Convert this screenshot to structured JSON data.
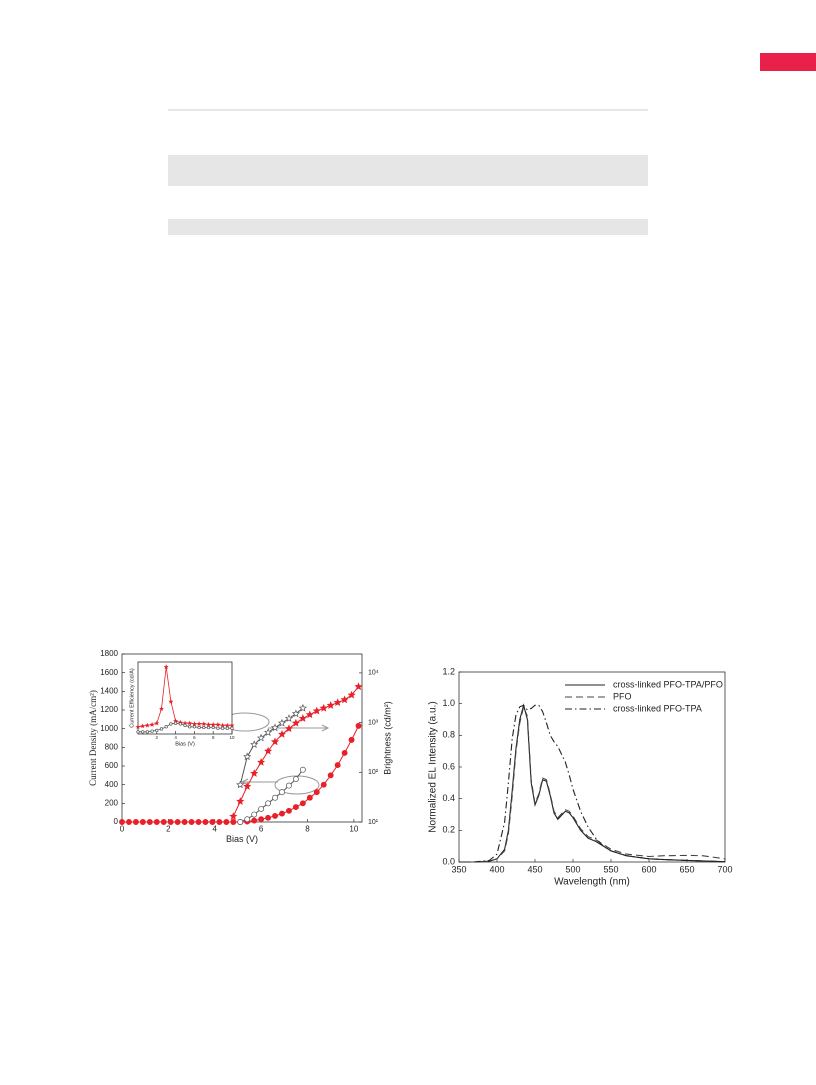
{
  "chart_data": [
    {
      "type": "line",
      "ylabel": "Current Density (mA/cm²)",
      "xlabel": "Bias (V)",
      "y2label": "Brightness (cd/m²)",
      "x": [
        0,
        0.3,
        0.6,
        0.9,
        1.2,
        1.5,
        1.8,
        2.1,
        2.4,
        2.7,
        3.0,
        3.3,
        3.6,
        3.9,
        4.2,
        4.5,
        4.8,
        5.1,
        5.4,
        5.7,
        6.0,
        6.3,
        6.6,
        6.9,
        7.2,
        7.5,
        7.8,
        8.1,
        8.4,
        8.7,
        9.0,
        9.3,
        9.6,
        9.9,
        10.2
      ],
      "xlim": [
        0,
        10.35
      ],
      "xticks": [
        0,
        2,
        4,
        6,
        8,
        10
      ],
      "ylim": [
        0,
        1800
      ],
      "yticks": [
        0,
        200,
        400,
        600,
        800,
        1000,
        1200,
        1400,
        1600,
        1800
      ],
      "y2lim": [
        10,
        24000
      ],
      "y2log": true,
      "y2ticks": [
        {
          "value": 10,
          "label": "10¹"
        },
        {
          "value": 100,
          "label": "10²"
        },
        {
          "value": 1000,
          "label": "10³"
        },
        {
          "value": 10000,
          "label": "10⁴"
        }
      ],
      "series": [
        {
          "color": "#e8202a",
          "marker": "star",
          "filled": true,
          "axis": "y2",
          "values": [
            null,
            null,
            null,
            null,
            null,
            null,
            null,
            null,
            null,
            null,
            null,
            null,
            null,
            null,
            null,
            null,
            13,
            26,
            52,
            95,
            159,
            267,
            412,
            582,
            755,
            977,
            1214,
            1443,
            1715,
            1954,
            2224,
            2531,
            2884,
            3573,
            5284
          ]
        },
        {
          "color": "#555555",
          "marker": "star",
          "filled": false,
          "axis": "y2",
          "values": [
            null,
            null,
            null,
            null,
            null,
            null,
            null,
            null,
            null,
            null,
            null,
            null,
            null,
            null,
            null,
            null,
            null,
            56,
            206,
            361,
            490,
            634,
            788,
            977,
            1214,
            1507,
            1954,
            null,
            null,
            null,
            null,
            null,
            null,
            null,
            null
          ]
        },
        {
          "color": "#e8202a",
          "marker": "circle",
          "filled": true,
          "values": [
            0,
            0,
            0,
            0,
            0,
            0,
            0,
            0,
            0,
            0,
            0,
            0,
            0,
            0,
            0,
            0,
            0,
            0,
            5,
            15,
            30,
            45,
            65,
            90,
            120,
            160,
            200,
            260,
            320,
            400,
            500,
            610,
            740,
            880,
            1030
          ]
        },
        {
          "color": "#555555",
          "marker": "circle",
          "filled": false,
          "values": [
            null,
            null,
            null,
            null,
            null,
            null,
            null,
            null,
            null,
            null,
            null,
            null,
            null,
            null,
            null,
            null,
            null,
            0,
            30,
            80,
            140,
            200,
            260,
            320,
            390,
            460,
            560,
            null,
            null,
            null,
            null,
            null,
            null,
            null,
            null
          ]
        }
      ]
    },
    {
      "type": "line",
      "ylabel": "Current Efficiency (cd/A)",
      "xlabel": "Bias (V)",
      "x": [
        0,
        0.5,
        1,
        1.5,
        2,
        2.5,
        3,
        3.5,
        4,
        4.5,
        5,
        5.5,
        6,
        6.5,
        7,
        7.5,
        8,
        8.5,
        9,
        9.5,
        10
      ],
      "xlim": [
        0,
        10
      ],
      "xticks": [
        2,
        4,
        6,
        8,
        10
      ],
      "ylim": [
        0,
        10
      ],
      "series": [
        {
          "color": "#e8202a",
          "marker": "star",
          "filled": true,
          "values": [
            1.0,
            1.1,
            1.2,
            1.3,
            1.5,
            3.5,
            9.3,
            4.5,
            1.8,
            1.6,
            1.5,
            1.5,
            1.4,
            1.4,
            1.4,
            1.3,
            1.3,
            1.3,
            1.2,
            1.2,
            1.2
          ]
        },
        {
          "color": "#555555",
          "marker": "circle",
          "filled": false,
          "values": [
            0.3,
            0.3,
            0.3,
            0.4,
            0.5,
            0.7,
            1.0,
            1.4,
            1.5,
            1.4,
            1.2,
            1.0,
            1.0,
            0.9,
            0.9,
            0.9,
            0.9,
            0.8,
            0.8,
            0.8,
            0.8
          ]
        }
      ]
    },
    {
      "type": "line",
      "ylabel": "Normalized EL Intensity (a.u.)",
      "xlabel": "Wavelength (nm)",
      "x": [
        350,
        370,
        390,
        400,
        410,
        415,
        420,
        425,
        430,
        435,
        440,
        445,
        450,
        455,
        460,
        465,
        470,
        475,
        480,
        490,
        495,
        500,
        510,
        520,
        530,
        540,
        550,
        570,
        600,
        620,
        650,
        670,
        700
      ],
      "xlim": [
        350,
        700
      ],
      "xticks": [
        350,
        400,
        450,
        500,
        550,
        600,
        650,
        700
      ],
      "ylim": [
        0,
        1.2
      ],
      "yticks": [
        {
          "value": 0,
          "label": "0.0"
        },
        0.2,
        0.4,
        0.6,
        0.8,
        {
          "value": 1,
          "label": "1.0"
        },
        1.2
      ],
      "legend": "upper right",
      "series": [
        {
          "name": "cross-linked PFO-TPA/PFO",
          "color": "#222222",
          "dash": "solid",
          "values": [
            0,
            0,
            0.005,
            0.02,
            0.08,
            0.2,
            0.45,
            0.72,
            0.9,
            0.99,
            0.9,
            0.5,
            0.36,
            0.42,
            0.52,
            0.51,
            0.42,
            0.31,
            0.27,
            0.32,
            0.31,
            0.28,
            0.2,
            0.15,
            0.13,
            0.1,
            0.07,
            0.04,
            0.02,
            0.015,
            0.01,
            0.007,
            0.002
          ]
        },
        {
          "name": "PFO",
          "color": "#444444",
          "dash": "dashed",
          "values": [
            0,
            0,
            0.005,
            0.02,
            0.07,
            0.18,
            0.42,
            0.7,
            0.88,
            0.98,
            0.92,
            0.52,
            0.37,
            0.43,
            0.53,
            0.52,
            0.43,
            0.32,
            0.28,
            0.33,
            0.32,
            0.29,
            0.21,
            0.16,
            0.14,
            0.11,
            0.08,
            0.05,
            0.035,
            0.04,
            0.042,
            0.04,
            0.02
          ]
        },
        {
          "name": "cross-linked PFO-TPA",
          "color": "#222222",
          "dash": "dashdot",
          "values": [
            0,
            0,
            0.01,
            0.05,
            0.25,
            0.5,
            0.78,
            0.93,
            0.98,
            0.99,
            0.96,
            0.97,
            0.99,
            0.99,
            0.95,
            0.88,
            0.8,
            0.76,
            0.73,
            0.63,
            0.55,
            0.46,
            0.32,
            0.22,
            0.15,
            0.1,
            0.07,
            0.04,
            0.02,
            0.015,
            0.01,
            0.007,
            0.002
          ]
        }
      ]
    }
  ]
}
